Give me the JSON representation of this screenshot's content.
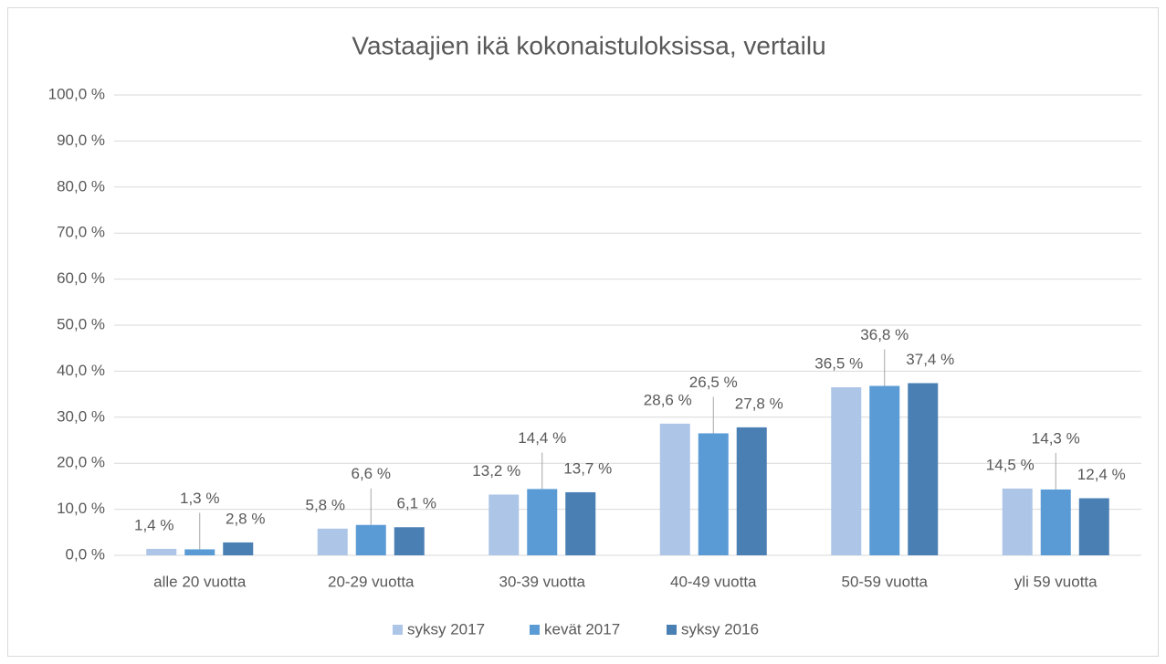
{
  "chart_data": {
    "type": "bar",
    "title": "Vastaajien ikä kokonaistuloksissa, vertailu",
    "categories": [
      "alle 20 vuotta",
      "20-29 vuotta",
      "30-39 vuotta",
      "40-49 vuotta",
      "50-59 vuotta",
      "yli 59 vuotta"
    ],
    "series": [
      {
        "name": "syksy 2017",
        "color": "#adc6e7",
        "values": [
          1.4,
          5.8,
          13.2,
          28.6,
          36.5,
          14.5
        ],
        "value_labels": [
          "1,4 %",
          "5,8 %",
          "13,2 %",
          "28,6 %",
          "36,5 %",
          "14,5 %"
        ]
      },
      {
        "name": "kevät 2017",
        "color": "#5b9bd5",
        "values": [
          1.3,
          6.6,
          14.4,
          26.5,
          36.8,
          14.3
        ],
        "value_labels": [
          "1,3 %",
          "6,6 %",
          "14,4 %",
          "26,5 %",
          "36,8 %",
          "14,3 %"
        ]
      },
      {
        "name": "syksy 2016",
        "color": "#4a7fb4",
        "values": [
          2.8,
          6.1,
          13.7,
          27.8,
          37.4,
          12.4
        ],
        "value_labels": [
          "2,8 %",
          "6,1 %",
          "13,7 %",
          "27,8 %",
          "37,4 %",
          "12,4 %"
        ]
      }
    ],
    "ylim": [
      0,
      100
    ],
    "yticks": [
      {
        "value": 0,
        "label": "0,0 %"
      },
      {
        "value": 10,
        "label": "10,0 %"
      },
      {
        "value": 20,
        "label": "20,0 %"
      },
      {
        "value": 30,
        "label": "30,0 %"
      },
      {
        "value": 40,
        "label": "40,0 %"
      },
      {
        "value": 50,
        "label": "50,0 %"
      },
      {
        "value": 60,
        "label": "60,0 %"
      },
      {
        "value": 70,
        "label": "70,0 %"
      },
      {
        "value": 80,
        "label": "80,0 %"
      },
      {
        "value": 90,
        "label": "90,0 %"
      },
      {
        "value": 100,
        "label": "100,0 %"
      }
    ],
    "grid": true,
    "legend": "bottom"
  }
}
